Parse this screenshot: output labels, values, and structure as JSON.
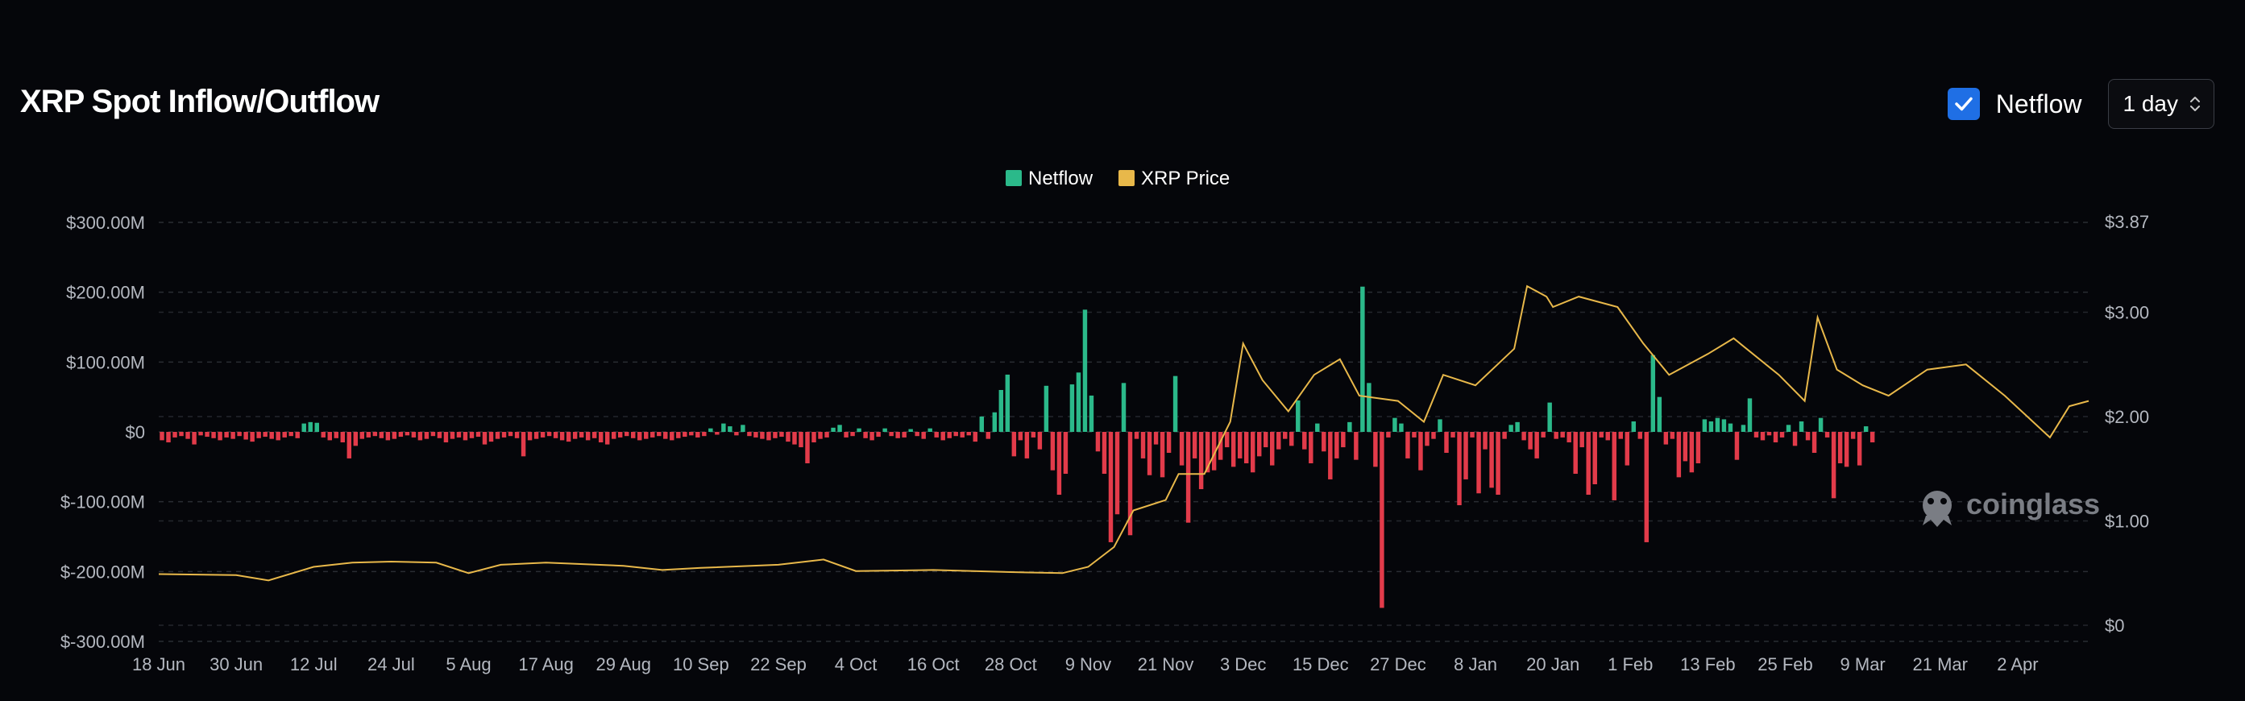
{
  "header": {
    "title": "XRP Spot Inflow/Outflow",
    "netflow_toggle": {
      "label": "Netflow",
      "checked": true,
      "color": "#1f6fe5"
    },
    "interval": {
      "value": "1 day"
    }
  },
  "watermark": "coinglass",
  "chart_data": {
    "type": "bar",
    "title": "",
    "legend": {
      "placement": "top-center",
      "items": [
        {
          "label": "Netflow",
          "color": "#2bb98a"
        },
        {
          "label": "XRP Price",
          "color": "#e8b84a"
        }
      ]
    },
    "left_axis": {
      "min": -300,
      "max": 300,
      "unit": "M USD",
      "ticks": [
        "$300.00M",
        "$200.00M",
        "$100.00M",
        "$0",
        "$-100.00M",
        "$-200.00M",
        "$-300.00M"
      ],
      "tick_values": [
        300,
        200,
        100,
        0,
        -100,
        -200,
        -300
      ]
    },
    "right_axis": {
      "min": 0,
      "max": 3.87,
      "ticks": [
        "$3.87",
        "$3.00",
        "$2.00",
        "$1.00",
        "$0"
      ],
      "tick_values": [
        3.87,
        3.0,
        2.0,
        1.0,
        0
      ]
    },
    "x_axis": {
      "start": "2024-06-18",
      "end": "2025-04-13",
      "ticks": [
        "18 Jun",
        "30 Jun",
        "12 Jul",
        "24 Jul",
        "5 Aug",
        "17 Aug",
        "29 Aug",
        "10 Sep",
        "22 Sep",
        "4 Oct",
        "16 Oct",
        "28 Oct",
        "9 Nov",
        "21 Nov",
        "3 Dec",
        "15 Dec",
        "27 Dec",
        "8 Jan",
        "20 Jan",
        "1 Feb",
        "13 Feb",
        "25 Feb",
        "9 Mar",
        "21 Mar",
        "2 Apr"
      ]
    },
    "grid": true,
    "colors": {
      "positive": "#2bb98a",
      "negative": "#e23b4a",
      "price": "#e8b84a"
    },
    "netflow_series": {
      "name": "Netflow",
      "unit": "M USD",
      "values": [
        -12,
        -15,
        -8,
        -6,
        -10,
        -18,
        -5,
        -7,
        -9,
        -12,
        -8,
        -10,
        -6,
        -11,
        -14,
        -9,
        -7,
        -10,
        -12,
        -8,
        -6,
        -9,
        12,
        14,
        13,
        -8,
        -12,
        -9,
        -15,
        -38,
        -20,
        -10,
        -8,
        -6,
        -9,
        -12,
        -10,
        -7,
        -5,
        -8,
        -12,
        -10,
        -6,
        -9,
        -15,
        -10,
        -8,
        -12,
        -9,
        -7,
        -18,
        -14,
        -10,
        -8,
        -6,
        -9,
        -35,
        -12,
        -10,
        -8,
        -6,
        -9,
        -12,
        -14,
        -10,
        -8,
        -12,
        -9,
        -15,
        -18,
        -10,
        -8,
        -6,
        -9,
        -12,
        -10,
        -8,
        -6,
        -10,
        -12,
        -9,
        -7,
        -5,
        -8,
        -6,
        5,
        -4,
        12,
        8,
        -5,
        10,
        -6,
        -8,
        -10,
        -12,
        -9,
        -7,
        -14,
        -18,
        -22,
        -45,
        -15,
        -10,
        -8,
        6,
        10,
        -8,
        -6,
        5,
        -9,
        -12,
        -7,
        5,
        -6,
        -9,
        -8,
        4,
        -6,
        -10,
        5,
        -8,
        -12,
        -9,
        -6,
        -8,
        -5,
        -14,
        22,
        -10,
        28,
        60,
        82,
        -35,
        -12,
        -38,
        -8,
        -25,
        66,
        -55,
        -90,
        -60,
        68,
        85,
        175,
        52,
        -28,
        -60,
        -158,
        -118,
        70,
        -148,
        -10,
        -38,
        -62,
        -18,
        -65,
        -30,
        80,
        -48,
        -130,
        -38,
        -82,
        -58,
        -55,
        -40,
        -22,
        -50,
        -38,
        -45,
        -58,
        -35,
        -22,
        -48,
        -25,
        -10,
        -20,
        45,
        -25,
        -45,
        12,
        -28,
        -68,
        -38,
        -22,
        14,
        -40,
        208,
        70,
        -50,
        -252,
        -8,
        20,
        12,
        -38,
        -8,
        -55,
        -20,
        -10,
        18,
        -30,
        -8,
        -105,
        -68,
        -8,
        -88,
        -25,
        -80,
        -90,
        -10,
        10,
        14,
        -12,
        -25,
        -38,
        -8,
        42,
        -10,
        -8,
        -15,
        -60,
        -22,
        -90,
        -75,
        -8,
        -12,
        -98,
        -10,
        -48,
        15,
        -10,
        -158,
        110,
        50,
        -18,
        -10,
        -65,
        -42,
        -58,
        -45,
        18,
        15,
        20,
        18,
        12,
        -40,
        10,
        48,
        -8,
        -12,
        -5,
        -15,
        -8,
        10,
        -20,
        15,
        -12,
        -30,
        20,
        -8,
        -95,
        -45,
        -50,
        -10,
        -48,
        8,
        -15
      ],
      "series_start": "2024-06-18"
    },
    "price_series": {
      "name": "XRP Price",
      "unit": "USD",
      "points": [
        [
          "2024-06-18",
          0.49
        ],
        [
          "2024-06-30",
          0.48
        ],
        [
          "2024-07-05",
          0.43
        ],
        [
          "2024-07-12",
          0.56
        ],
        [
          "2024-07-18",
          0.6
        ],
        [
          "2024-07-24",
          0.61
        ],
        [
          "2024-07-31",
          0.6
        ],
        [
          "2024-08-05",
          0.5
        ],
        [
          "2024-08-10",
          0.58
        ],
        [
          "2024-08-17",
          0.6
        ],
        [
          "2024-08-29",
          0.57
        ],
        [
          "2024-09-04",
          0.53
        ],
        [
          "2024-09-10",
          0.55
        ],
        [
          "2024-09-22",
          0.58
        ],
        [
          "2024-09-29",
          0.63
        ],
        [
          "2024-10-04",
          0.52
        ],
        [
          "2024-10-16",
          0.53
        ],
        [
          "2024-10-28",
          0.51
        ],
        [
          "2024-11-05",
          0.5
        ],
        [
          "2024-11-09",
          0.56
        ],
        [
          "2024-11-13",
          0.75
        ],
        [
          "2024-11-16",
          1.1
        ],
        [
          "2024-11-21",
          1.2
        ],
        [
          "2024-11-23",
          1.45
        ],
        [
          "2024-11-27",
          1.45
        ],
        [
          "2024-12-01",
          1.95
        ],
        [
          "2024-12-03",
          2.7
        ],
        [
          "2024-12-06",
          2.35
        ],
        [
          "2024-12-10",
          2.05
        ],
        [
          "2024-12-14",
          2.4
        ],
        [
          "2024-12-18",
          2.55
        ],
        [
          "2024-12-21",
          2.2
        ],
        [
          "2024-12-27",
          2.15
        ],
        [
          "2024-12-31",
          1.95
        ],
        [
          "2025-01-03",
          2.4
        ],
        [
          "2025-01-08",
          2.3
        ],
        [
          "2025-01-14",
          2.65
        ],
        [
          "2025-01-16",
          3.25
        ],
        [
          "2025-01-19",
          3.15
        ],
        [
          "2025-01-20",
          3.05
        ],
        [
          "2025-01-24",
          3.15
        ],
        [
          "2025-01-30",
          3.05
        ],
        [
          "2025-02-03",
          2.7
        ],
        [
          "2025-02-07",
          2.4
        ],
        [
          "2025-02-13",
          2.6
        ],
        [
          "2025-02-17",
          2.75
        ],
        [
          "2025-02-24",
          2.4
        ],
        [
          "2025-02-28",
          2.15
        ],
        [
          "2025-03-02",
          2.95
        ],
        [
          "2025-03-05",
          2.45
        ],
        [
          "2025-03-09",
          2.3
        ],
        [
          "2025-03-13",
          2.2
        ],
        [
          "2025-03-19",
          2.45
        ],
        [
          "2025-03-25",
          2.5
        ],
        [
          "2025-03-31",
          2.2
        ],
        [
          "2025-04-07",
          1.8
        ],
        [
          "2025-04-10",
          2.1
        ],
        [
          "2025-04-13",
          2.15
        ]
      ]
    }
  }
}
